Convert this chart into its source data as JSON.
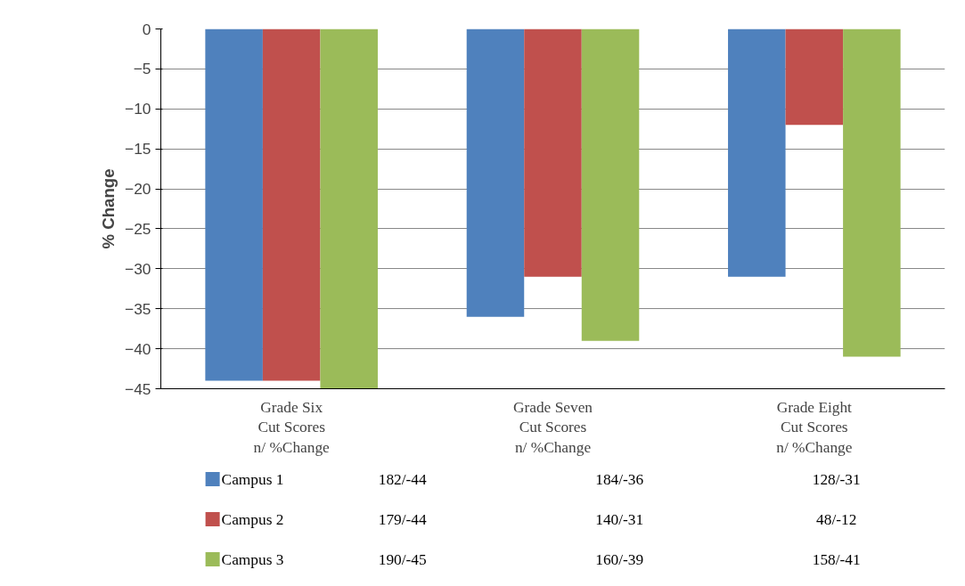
{
  "chart_data": {
    "type": "bar",
    "ylabel": "% Change",
    "categories": [
      "Grade Six\nCut Scores\nn/ %Change",
      "Grade Seven\nCut Scores\nn/ %Change",
      "Grade Eight\nCut Scores\nn/ %Change"
    ],
    "series": [
      {
        "name": "Campus 1",
        "color": "#4f81bd",
        "values": [
          -44,
          -36,
          -31
        ],
        "value_labels": [
          "182/-44",
          "184/-36",
          "128/-31"
        ]
      },
      {
        "name": "Campus 2",
        "color": "#c0504d",
        "values": [
          -44,
          -31,
          -12
        ],
        "value_labels": [
          "179/-44",
          "140/-31",
          "48/-12"
        ]
      },
      {
        "name": "Campus 3",
        "color": "#9bbb59",
        "values": [
          -45,
          -39,
          -41
        ],
        "value_labels": [
          "190/-45",
          "160/-39",
          "158/-41"
        ]
      }
    ],
    "ylim": [
      -45,
      0
    ],
    "yticks": [
      0,
      -5,
      -10,
      -15,
      -20,
      -25,
      -30,
      -35,
      -40,
      -45
    ],
    "grid": "y",
    "legend": "bottom left"
  }
}
